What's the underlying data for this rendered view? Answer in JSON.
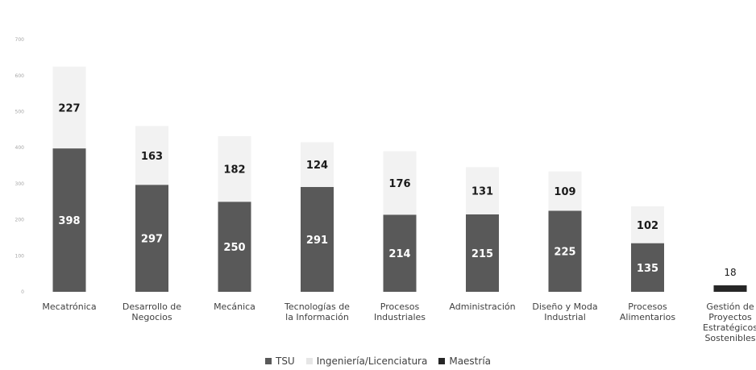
{
  "chart_data": {
    "type": "bar",
    "stacked": true,
    "title": "",
    "xlabel": "",
    "ylabel": "",
    "ylim": [
      0,
      700
    ],
    "yticks": [
      0,
      100,
      200,
      300,
      400,
      500,
      600,
      700
    ],
    "grid": false,
    "legend_position": "bottom",
    "categories": [
      [
        "Mecatrónica"
      ],
      [
        "Desarrollo de",
        "Negocios"
      ],
      [
        "Mecánica"
      ],
      [
        "Tecnologías de",
        "la Información"
      ],
      [
        "Procesos",
        "Industriales"
      ],
      [
        "Administración"
      ],
      [
        "Diseño y Moda",
        "Industrial"
      ],
      [
        "Procesos",
        "Alimentarios"
      ],
      [
        "Gestión de",
        "Proyectos",
        "Estratégicos",
        "Sostenibles"
      ]
    ],
    "series": [
      {
        "name": "TSU",
        "color": "#595959",
        "values": [
          398,
          297,
          250,
          291,
          214,
          215,
          225,
          135,
          null
        ]
      },
      {
        "name": "Ingeniería/Licenciatura",
        "color": "#f2f2f2",
        "values": [
          227,
          163,
          182,
          124,
          176,
          131,
          109,
          102,
          null
        ]
      },
      {
        "name": "Maestría",
        "color": "#262626",
        "values": [
          null,
          null,
          null,
          null,
          null,
          null,
          null,
          null,
          18
        ]
      }
    ]
  }
}
